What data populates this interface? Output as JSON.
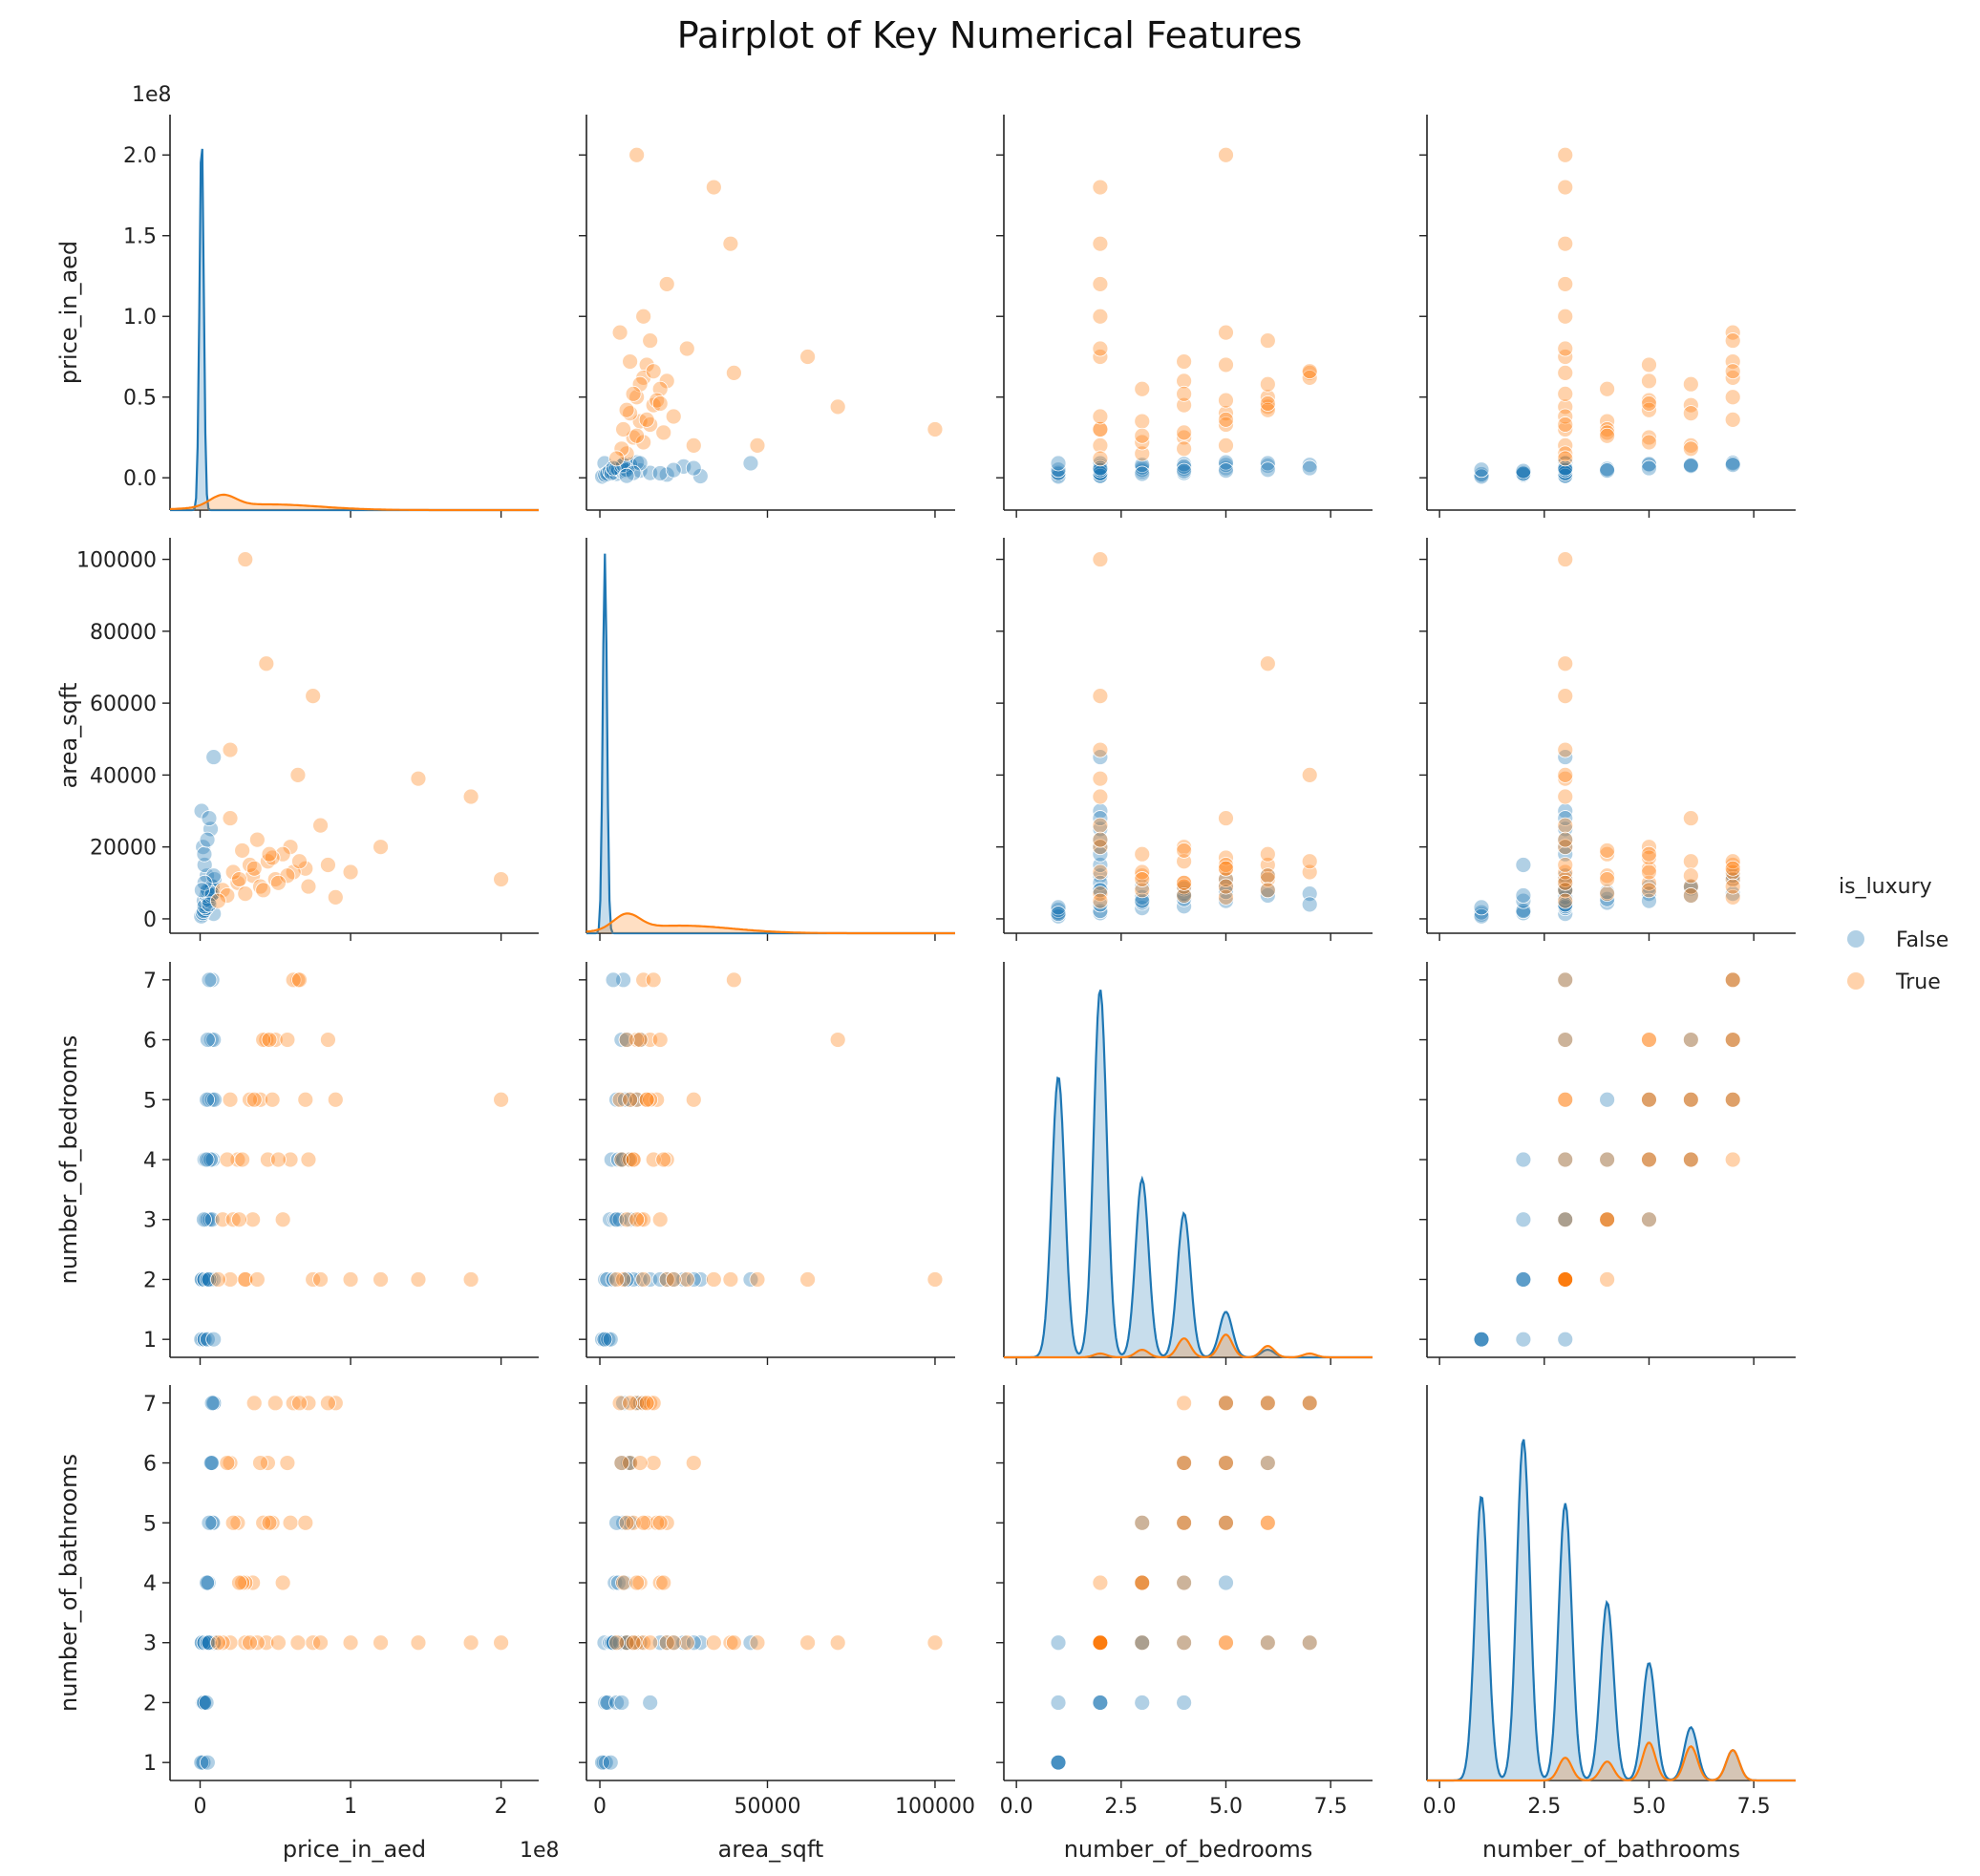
{
  "chart_data": {
    "type": "scatter",
    "title": "Pairplot of Key Numerical Features",
    "variables": [
      {
        "name": "price_in_aed",
        "lim": [
          -20000000,
          225000000
        ],
        "ticks": [
          0,
          50000000,
          100000000,
          150000000,
          200000000
        ],
        "tick_labels_y": [
          "0.0",
          "0.5",
          "1.0",
          "1.5",
          "2.0"
        ],
        "tick_labels_x": [
          "0",
          "1",
          "2"
        ],
        "ticks_x": [
          0,
          100000000,
          200000000
        ],
        "offset": "1e8"
      },
      {
        "name": "area_sqft",
        "lim": [
          -4000,
          106000
        ],
        "ticks": [
          0,
          20000,
          40000,
          60000,
          80000,
          100000
        ],
        "tick_labels_y": [
          "0",
          "20000",
          "40000",
          "60000",
          "80000",
          "100000"
        ],
        "ticks_x": [
          0,
          50000,
          100000
        ],
        "tick_labels_x": [
          "0",
          "50000",
          "100000"
        ],
        "offset": ""
      },
      {
        "name": "number_of_bedrooms",
        "lim": [
          0.7,
          7.3
        ],
        "ticks": [
          1,
          2,
          3,
          4,
          5,
          6,
          7
        ],
        "tick_labels_y": [
          "1",
          "2",
          "3",
          "4",
          "5",
          "6",
          "7"
        ],
        "ticks_x": [
          0,
          2.5,
          5,
          7.5
        ],
        "tick_labels_x": [
          "0.0",
          "2.5",
          "5.0",
          "7.5"
        ],
        "xlim": [
          -0.3,
          8.5
        ],
        "offset": ""
      },
      {
        "name": "number_of_bathrooms",
        "lim": [
          0.7,
          7.3
        ],
        "ticks": [
          1,
          2,
          3,
          4,
          5,
          6,
          7
        ],
        "tick_labels_y": [
          "1",
          "2",
          "3",
          "4",
          "5",
          "6",
          "7"
        ],
        "ticks_x": [
          0,
          2.5,
          5,
          7.5
        ],
        "tick_labels_x": [
          "0.0",
          "2.5",
          "5.0",
          "7.5"
        ],
        "xlim": [
          -0.3,
          8.5
        ],
        "offset": ""
      }
    ],
    "hue": {
      "name": "is_luxury",
      "levels": [
        "False",
        "True"
      ],
      "colors": [
        "#1f77b4",
        "#ff7f0e"
      ]
    },
    "legend_placement": "center-right",
    "series": [
      {
        "name": "False",
        "points": [
          [
            1500000,
            1200,
            1,
            1
          ],
          [
            2200000,
            1800,
            1,
            1
          ],
          [
            800000,
            700,
            1,
            1
          ],
          [
            3000000,
            2500,
            1,
            2
          ],
          [
            5000000,
            3200,
            1,
            1
          ],
          [
            9000000,
            1400,
            1,
            3
          ],
          [
            1800000,
            1600,
            2,
            2
          ],
          [
            2500000,
            2200,
            2,
            2
          ],
          [
            3500000,
            4000,
            2,
            3
          ],
          [
            6000000,
            8000,
            2,
            3
          ],
          [
            4500000,
            12000,
            2,
            3
          ],
          [
            2000000,
            20000,
            2,
            3
          ],
          [
            7000000,
            25000,
            2,
            3
          ],
          [
            9000000,
            45000,
            2,
            3
          ],
          [
            1000000,
            30000,
            2,
            3
          ],
          [
            3000000,
            15000,
            2,
            2
          ],
          [
            4000000,
            3000,
            3,
            3
          ],
          [
            5000000,
            4500,
            3,
            4
          ],
          [
            6500000,
            6000,
            3,
            3
          ],
          [
            8000000,
            9000,
            3,
            5
          ],
          [
            2500000,
            5000,
            3,
            2
          ],
          [
            3000000,
            3500,
            4,
            3
          ],
          [
            5500000,
            5500,
            4,
            4
          ],
          [
            8500000,
            7000,
            4,
            5
          ],
          [
            7000000,
            8500,
            4,
            6
          ],
          [
            4200000,
            6500,
            4,
            2
          ],
          [
            6000000,
            5000,
            5,
            5
          ],
          [
            8000000,
            9000,
            5,
            6
          ],
          [
            9500000,
            11000,
            5,
            7
          ],
          [
            4500000,
            7500,
            5,
            4
          ],
          [
            7500000,
            6500,
            6,
            6
          ],
          [
            9000000,
            12000,
            6,
            7
          ],
          [
            5000000,
            8000,
            6,
            3
          ],
          [
            8000000,
            7000,
            7,
            7
          ],
          [
            6000000,
            4000,
            7,
            3
          ],
          [
            3000000,
            10000,
            2,
            3
          ],
          [
            1200000,
            8000,
            2,
            3
          ],
          [
            2800000,
            18000,
            2,
            3
          ],
          [
            4800000,
            22000,
            2,
            3
          ],
          [
            6000000,
            28000,
            2,
            3
          ]
        ]
      },
      {
        "name": "True",
        "points": [
          [
            200000000,
            11000,
            5,
            3
          ],
          [
            180000000,
            34000,
            2,
            3
          ],
          [
            145000000,
            39000,
            2,
            3
          ],
          [
            120000000,
            20000,
            2,
            3
          ],
          [
            100000000,
            13000,
            2,
            3
          ],
          [
            90000000,
            6000,
            5,
            7
          ],
          [
            75000000,
            62000,
            2,
            3
          ],
          [
            65000000,
            40000,
            7,
            3
          ],
          [
            44000000,
            71000,
            6,
            3
          ],
          [
            30000000,
            100000,
            2,
            3
          ],
          [
            20000000,
            47000,
            2,
            3
          ],
          [
            20000000,
            28000,
            5,
            6
          ],
          [
            60000000,
            20000,
            4,
            5
          ],
          [
            85000000,
            15000,
            6,
            7
          ],
          [
            80000000,
            26000,
            2,
            3
          ],
          [
            55000000,
            18000,
            3,
            4
          ],
          [
            45000000,
            16000,
            4,
            6
          ],
          [
            70000000,
            14000,
            5,
            5
          ],
          [
            35000000,
            12000,
            3,
            4
          ],
          [
            25000000,
            10000,
            4,
            5
          ],
          [
            40000000,
            9000,
            5,
            6
          ],
          [
            50000000,
            11000,
            6,
            7
          ],
          [
            15000000,
            8000,
            3,
            3
          ],
          [
            30000000,
            7000,
            2,
            4
          ],
          [
            62000000,
            13000,
            7,
            7
          ],
          [
            48000000,
            17000,
            5,
            5
          ],
          [
            38000000,
            22000,
            2,
            3
          ],
          [
            28000000,
            19000,
            4,
            4
          ],
          [
            72000000,
            9000,
            4,
            7
          ],
          [
            58000000,
            12000,
            6,
            6
          ],
          [
            33000000,
            15000,
            5,
            3
          ],
          [
            22000000,
            13000,
            3,
            5
          ],
          [
            18000000,
            6500,
            4,
            6
          ],
          [
            42000000,
            8000,
            6,
            5
          ],
          [
            66000000,
            16000,
            7,
            7
          ],
          [
            12000000,
            5000,
            2,
            3
          ],
          [
            26000000,
            11000,
            3,
            4
          ],
          [
            52000000,
            10000,
            4,
            3
          ],
          [
            36000000,
            14000,
            5,
            7
          ],
          [
            46000000,
            18000,
            6,
            5
          ]
        ]
      }
    ],
    "kde": {
      "price_in_aed": {
        "False": {
          "peak_x": 1000000,
          "peak": 1.0
        },
        "True": {
          "peak_x": 15000000,
          "peak": 0.03
        }
      },
      "area_sqft": {
        "False": {
          "peak_x": 1500,
          "peak": 1.0
        },
        "True": {
          "peak_x": 8000,
          "peak": 0.04
        }
      },
      "number_of_bedrooms": {
        "False": {
          "peaks": [
            [
              1,
              0.74
            ],
            [
              2,
              0.97
            ],
            [
              3,
              0.47
            ],
            [
              4,
              0.38
            ],
            [
              5,
              0.12
            ],
            [
              6,
              0.02
            ]
          ]
        },
        "True": {
          "peaks": [
            [
              2,
              0.01
            ],
            [
              3,
              0.02
            ],
            [
              4,
              0.05
            ],
            [
              5,
              0.06
            ],
            [
              6,
              0.03
            ],
            [
              7,
              0.01
            ]
          ]
        }
      },
      "number_of_bathrooms": {
        "False": {
          "peaks": [
            [
              1,
              0.75
            ],
            [
              2,
              0.9
            ],
            [
              3,
              0.73
            ],
            [
              4,
              0.47
            ],
            [
              5,
              0.31
            ],
            [
              6,
              0.14
            ],
            [
              7,
              0.08
            ]
          ]
        },
        "True": {
          "peaks": [
            [
              3,
              0.06
            ],
            [
              4,
              0.05
            ],
            [
              5,
              0.1
            ],
            [
              6,
              0.09
            ],
            [
              7,
              0.08
            ]
          ]
        }
      }
    }
  }
}
